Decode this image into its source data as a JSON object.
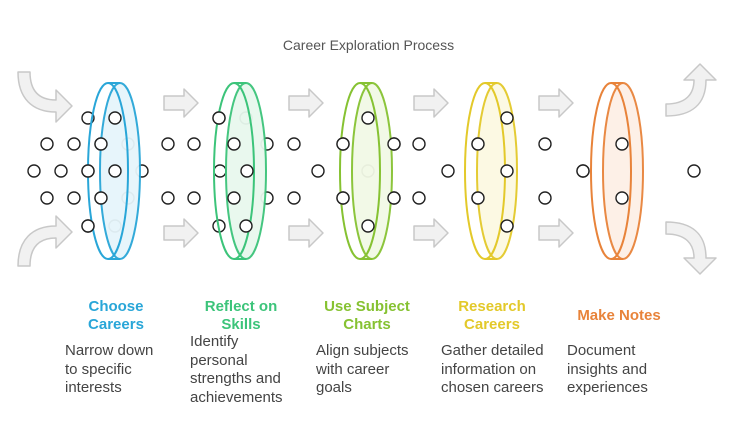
{
  "title": "Career Exploration Process",
  "colors": {
    "arrow_fill": "#f1f1f1",
    "arrow_stroke": "#c8c8c8",
    "dot_stroke": "#222222"
  },
  "stages": [
    {
      "label": "Choose Careers",
      "label_lines": [
        "Choose",
        "Careers"
      ],
      "description_lines": [
        "Narrow down",
        "to specific",
        "interests"
      ],
      "color": "#29a6d8",
      "fill": "#e6f5fb"
    },
    {
      "label": "Reflect on Skills",
      "label_lines": [
        "Reflect on",
        "Skills"
      ],
      "description_lines": [
        "Identify",
        "personal",
        "strengths and",
        "achievements"
      ],
      "color": "#3cc47a",
      "fill": "#e8f8ee"
    },
    {
      "label": "Use Subject Charts",
      "label_lines": [
        "Use Subject",
        "Charts"
      ],
      "description_lines": [
        "Align subjects",
        "with career",
        "goals"
      ],
      "color": "#86c232",
      "fill": "#f2f9e6"
    },
    {
      "label": "Research Careers",
      "label_lines": [
        "Research",
        "Careers"
      ],
      "description_lines": [
        "Gather detailed",
        "information on",
        "chosen careers"
      ],
      "color": "#e3c92a",
      "fill": "#fcf9e2"
    },
    {
      "label": "Make Notes",
      "label_lines": [
        "Make Notes"
      ],
      "description_lines": [
        "Document",
        "insights and",
        "experiences"
      ],
      "color": "#e8833a",
      "fill": "#fdf0e6"
    }
  ]
}
